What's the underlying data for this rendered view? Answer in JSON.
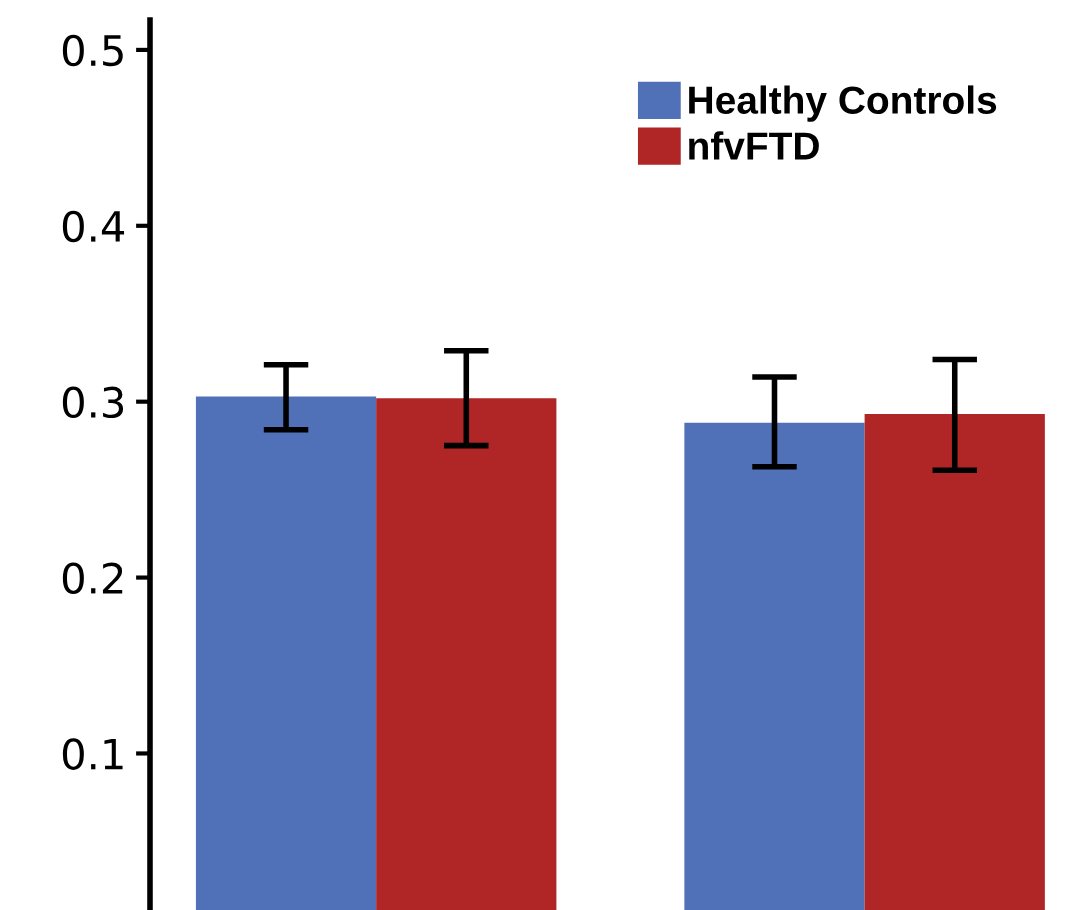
{
  "chart_data": {
    "type": "bar",
    "categories": [
      null,
      null
    ],
    "series": [
      {
        "name": "Healthy Controls",
        "color": "#5070b8",
        "values": [
          0.303,
          0.288
        ],
        "errors": [
          [
            0.284,
            0.321
          ],
          [
            0.263,
            0.314
          ]
        ]
      },
      {
        "name": "nfvFTD",
        "color": "#b02525",
        "values": [
          0.302,
          0.293
        ],
        "errors": [
          [
            0.275,
            0.329
          ],
          [
            0.261,
            0.324
          ]
        ]
      }
    ],
    "ylim": [
      0.011,
      0.517
    ],
    "yticks": [
      0.1,
      0.2,
      0.3,
      0.4,
      0.5
    ],
    "tick_labels": "y",
    "grid": false,
    "legend": "top right"
  }
}
